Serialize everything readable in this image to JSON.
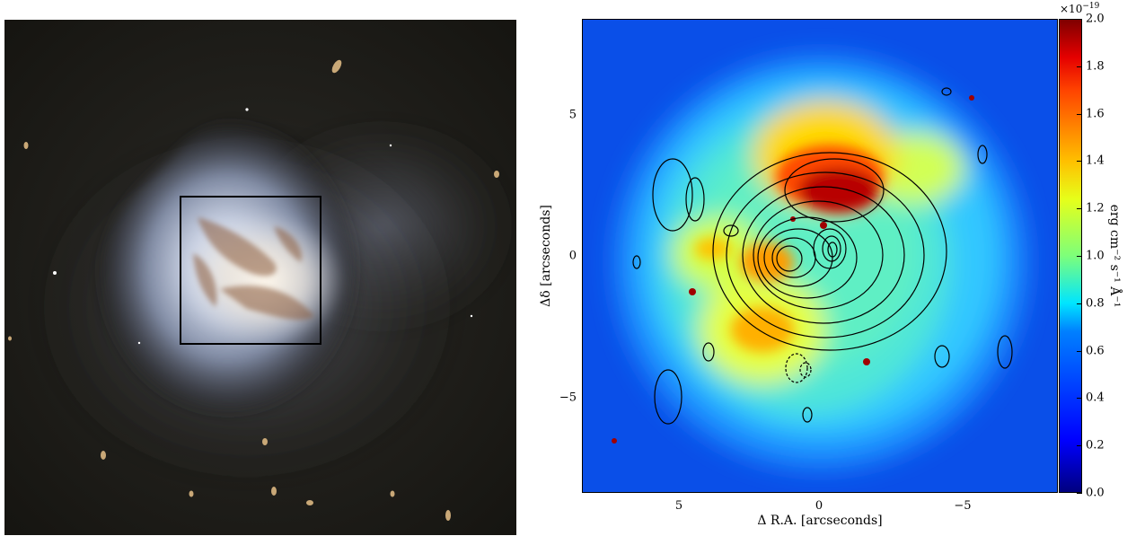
{
  "left_panel": {
    "description_icon": "galaxy-image",
    "overlay_box": "black-rectangle"
  },
  "right_panel": {
    "x_axis": {
      "label": "Δ R.A. [arcseconds]",
      "ticks": [
        "5",
        "0",
        "−5"
      ]
    },
    "y_axis": {
      "label": "Δδ [arcseconds]",
      "ticks": [
        "5",
        "0",
        "−5"
      ]
    },
    "colorbar": {
      "exponent": "×10",
      "exponent_power": "−19",
      "label": "erg cm⁻² s⁻¹ Å⁻¹",
      "ticks": [
        "2.0",
        "1.8",
        "1.6",
        "1.4",
        "1.2",
        "1.0",
        "0.8",
        "0.6",
        "0.4",
        "0.2",
        "0.0"
      ],
      "colormap": "jet"
    }
  }
}
